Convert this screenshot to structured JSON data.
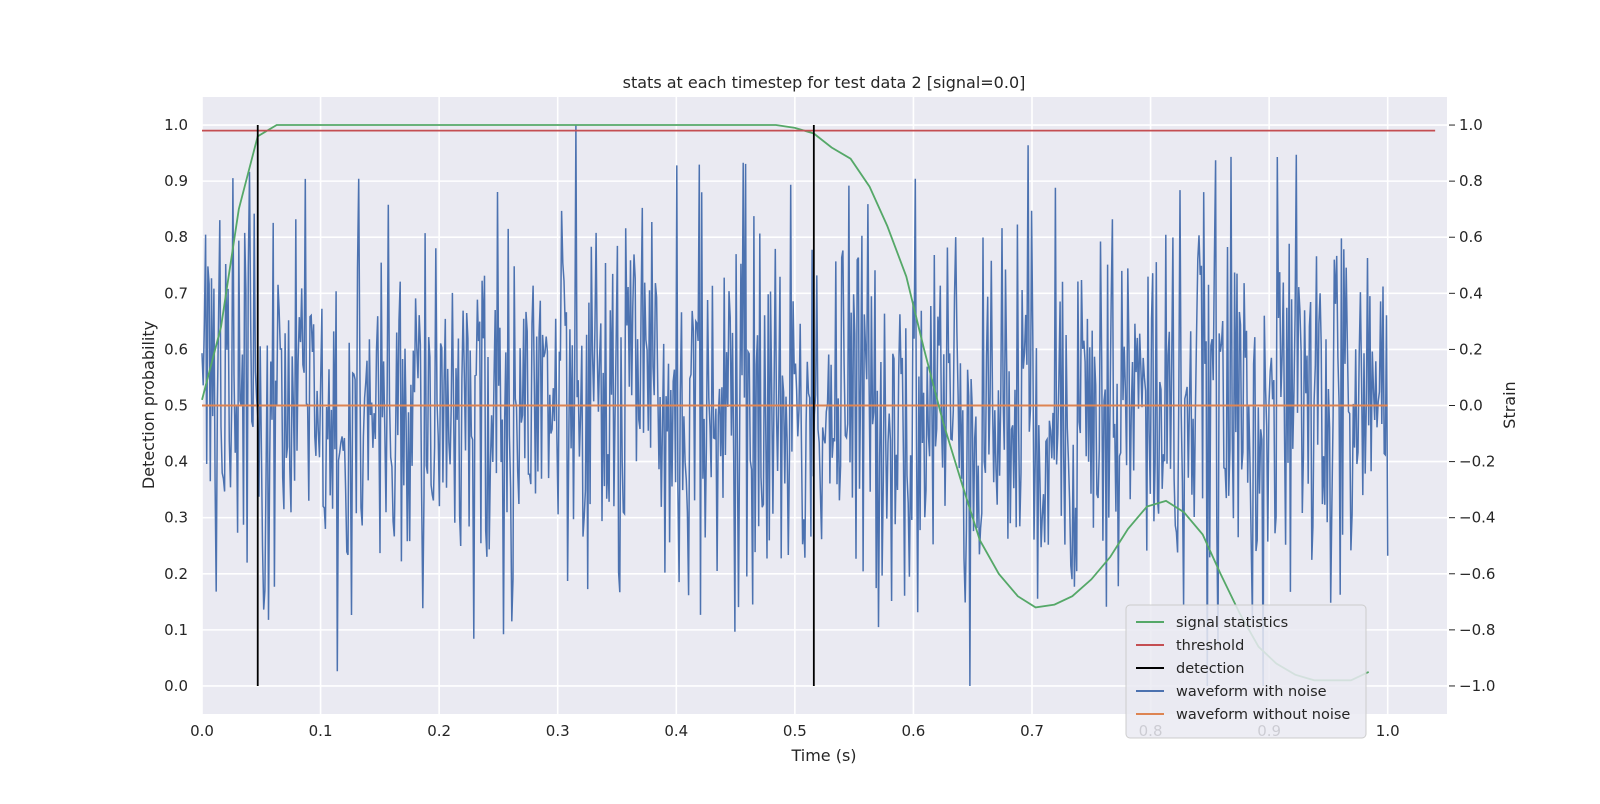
{
  "chart_data": {
    "type": "line",
    "title": "stats at each timestep for test data 2 [signal=0.0]",
    "xlabel": "Time (s)",
    "ylabel": "Detection probability",
    "y2label": "Strain",
    "xlim": [
      0.0,
      1.05
    ],
    "ylim": [
      -0.05,
      1.05
    ],
    "y2lim": [
      -1.1,
      1.1
    ],
    "xticks": [
      "0.0",
      "0.1",
      "0.2",
      "0.3",
      "0.4",
      "0.5",
      "0.6",
      "0.7",
      "0.8",
      "0.9",
      "1.0"
    ],
    "yticks": [
      "0.0",
      "0.1",
      "0.2",
      "0.3",
      "0.4",
      "0.5",
      "0.6",
      "0.7",
      "0.8",
      "0.9",
      "1.0"
    ],
    "y2ticks": [
      "−1.0",
      "−0.8",
      "−0.6",
      "−0.4",
      "−0.2",
      "0.0",
      "0.2",
      "0.4",
      "0.6",
      "0.8",
      "1.0"
    ],
    "grid": true,
    "background": "#eaeaf2",
    "legend_position": "lower right",
    "series": [
      {
        "name": "signal statistics",
        "color": "#55a868",
        "axis": "left",
        "x": [
          0.0,
          0.016,
          0.031,
          0.047,
          0.063,
          0.078,
          0.1,
          0.2,
          0.3,
          0.4,
          0.484,
          0.5,
          0.516,
          0.531,
          0.547,
          0.563,
          0.578,
          0.594,
          0.609,
          0.625,
          0.641,
          0.656,
          0.672,
          0.688,
          0.703,
          0.719,
          0.734,
          0.75,
          0.766,
          0.781,
          0.797,
          0.813,
          0.828,
          0.844,
          0.859,
          0.875,
          0.891,
          0.906,
          0.922,
          0.938,
          0.953,
          0.969,
          0.984
        ],
        "y": [
          0.51,
          0.64,
          0.85,
          0.98,
          1.0,
          1.0,
          1.0,
          1.0,
          1.0,
          1.0,
          1.0,
          0.995,
          0.985,
          0.96,
          0.94,
          0.89,
          0.82,
          0.73,
          0.6,
          0.47,
          0.36,
          0.26,
          0.2,
          0.16,
          0.14,
          0.145,
          0.16,
          0.19,
          0.23,
          0.28,
          0.32,
          0.33,
          0.31,
          0.27,
          0.2,
          0.13,
          0.07,
          0.04,
          0.02,
          0.01,
          0.01,
          0.01,
          0.025
        ]
      },
      {
        "name": "threshold",
        "color": "#c44e52",
        "axis": "left",
        "x": [
          0.0,
          1.04
        ],
        "y": [
          0.99,
          0.99
        ]
      },
      {
        "name": "detection",
        "color": "#000000",
        "axis": "left",
        "vlines": [
          0.047,
          0.516
        ],
        "y_range": [
          0.0,
          1.0
        ]
      },
      {
        "name": "waveform with noise",
        "color": "#4c72b0",
        "axis": "right",
        "x_range": [
          0.0,
          1.0
        ],
        "amplitude_range": [
          -1.0,
          1.0
        ],
        "n_points": 1000,
        "seed": 2
      },
      {
        "name": "waveform without noise",
        "color": "#dd8452",
        "axis": "right",
        "x": [
          0.0,
          1.0
        ],
        "y": [
          0.0,
          0.0
        ]
      }
    ]
  }
}
